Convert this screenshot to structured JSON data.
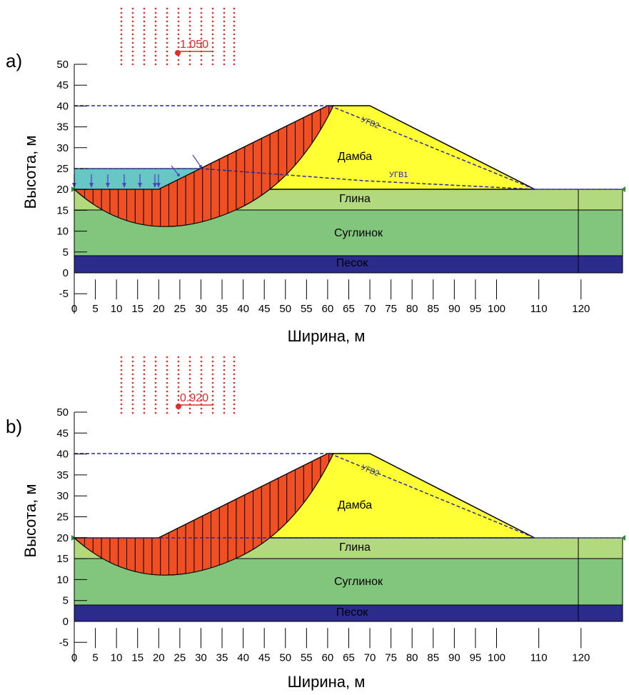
{
  "colors": {
    "dam": "#ffff33",
    "clay": "#b3d97e",
    "loam": "#82c57d",
    "sand": "#2b2b8c",
    "slip_mass": "#f04e23",
    "reservoir": "#66c7c5",
    "water_line": "#2a2a9a",
    "fs_marker": "#e32b2b"
  },
  "axes": {
    "x_label": "Ширина, м",
    "y_label": "Высота, м",
    "x_range": [
      0,
      130
    ],
    "y_range": [
      -5,
      50
    ],
    "x_ticks": [
      "0",
      "5",
      "10",
      "15",
      "20",
      "25",
      "30",
      "35",
      "40",
      "45",
      "50",
      "55",
      "60",
      "65",
      "70",
      "75",
      "80",
      "85",
      "90",
      "95",
      "100",
      "110",
      "120"
    ],
    "y_ticks": [
      "50",
      "45",
      "40",
      "35",
      "30",
      "25",
      "20",
      "15",
      "10",
      "5",
      "0",
      "-5"
    ]
  },
  "layers": {
    "dam": "Дамба",
    "clay": "Глина",
    "loam": "Суглинок",
    "sand": "Песок"
  },
  "panels": [
    {
      "label": "a)",
      "factor_of_safety": "1.050",
      "water_labels": [
        "УГВ2",
        "УГВ1"
      ],
      "reservoir": true
    },
    {
      "label": "b)",
      "factor_of_safety": "0.920",
      "water_labels": [
        "УГВ2"
      ],
      "reservoir": false
    }
  ]
}
